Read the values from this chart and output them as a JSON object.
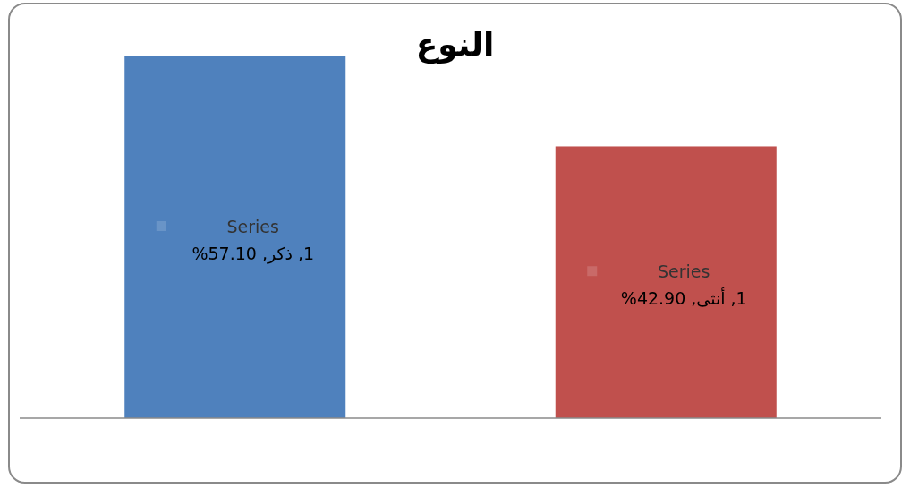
{
  "chart_data": {
    "type": "bar",
    "title": "النوع",
    "categories": [
      null,
      null
    ],
    "series": [
      {
        "values": [
          57.1,
          42.9
        ],
        "colors": [
          "#4f81bd",
          "#c0504d"
        ],
        "value_labels": [
          "Series 1, ذكر, 57.10%",
          "Series 1, أنثى, 42.90%"
        ]
      }
    ]
  }
}
